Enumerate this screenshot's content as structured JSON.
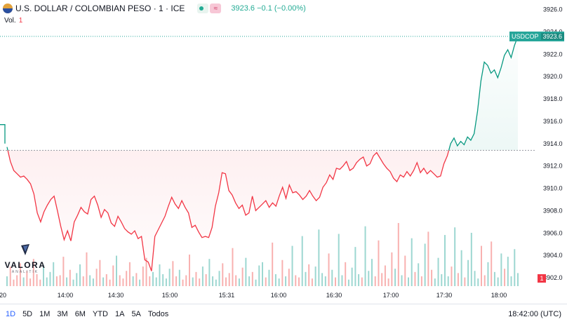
{
  "header": {
    "title": "U.S. DOLLAR / COLOMBIAN PESO · 1 · ICE",
    "approx_symbol": "≈",
    "price": "3923.6",
    "change": "−0.1 (−0.00%)"
  },
  "volume": {
    "label": "Vol.",
    "value": "1"
  },
  "symbol_tag": {
    "symbol": "USDCOP",
    "price": "3923.6"
  },
  "volume_flag": "1",
  "logo": {
    "name": "VALORA",
    "sub": "ANALITIK"
  },
  "colors": {
    "up": "#089981",
    "down": "#f23645",
    "vol_up": "#26a69a",
    "vol_down": "#ef5350"
  },
  "time_ranges": [
    "1D",
    "5D",
    "1M",
    "3M",
    "6M",
    "YTD",
    "1A",
    "5A",
    "Todos"
  ],
  "clock": "18:42:00 (UTC)",
  "chart_data": {
    "type": "area",
    "y_ticks": [
      "3926.0",
      "3924.0",
      "3922.0",
      "3920.0",
      "3918.0",
      "3916.0",
      "3914.0",
      "3912.0",
      "3910.0",
      "3908.0",
      "3906.0",
      "3904.0",
      "3902.0"
    ],
    "x_ticks": [
      "20",
      "14:00",
      "14:30",
      "15:00",
      "15:31",
      "16:00",
      "16:30",
      "17:00",
      "17:30",
      "18:00"
    ],
    "ylim": [
      3901.0,
      3926.6
    ],
    "baseline": 3913.4,
    "last_price": 3923.6,
    "prev_segment": [
      3915.7,
      3914.0
    ],
    "prices": [
      3913.7,
      3912.4,
      3911.6,
      3911.3,
      3911.0,
      3911.1,
      3910.8,
      3910.4,
      3909.5,
      3907.8,
      3907.0,
      3907.9,
      3908.5,
      3909.0,
      3909.3,
      3908.0,
      3906.6,
      3905.4,
      3906.2,
      3905.3,
      3907.0,
      3907.6,
      3908.3,
      3907.9,
      3907.7,
      3909.0,
      3909.3,
      3908.5,
      3907.4,
      3908.1,
      3907.8,
      3906.9,
      3906.6,
      3907.5,
      3907.0,
      3906.4,
      3906.1,
      3905.9,
      3906.2,
      3905.5,
      3905.7,
      3903.6,
      3903.4,
      3902.6,
      3905.7,
      3906.3,
      3906.9,
      3907.5,
      3908.4,
      3909.2,
      3908.6,
      3908.2,
      3908.9,
      3908.3,
      3907.8,
      3906.5,
      3906.7,
      3906.1,
      3905.6,
      3905.7,
      3905.6,
      3906.5,
      3908.4,
      3909.6,
      3911.4,
      3911.3,
      3909.8,
      3909.4,
      3908.7,
      3908.2,
      3908.5,
      3907.6,
      3907.8,
      3909.3,
      3908.0,
      3908.3,
      3908.6,
      3908.9,
      3908.3,
      3908.7,
      3908.4,
      3909.3,
      3910.1,
      3909.1,
      3910.3,
      3909.6,
      3909.7,
      3909.4,
      3909.0,
      3909.3,
      3909.8,
      3909.3,
      3908.9,
      3909.2,
      3910.1,
      3910.5,
      3911.2,
      3910.8,
      3911.8,
      3911.7,
      3912.0,
      3912.4,
      3911.6,
      3911.8,
      3912.3,
      3912.6,
      3912.8,
      3912.0,
      3912.2,
      3912.9,
      3913.2,
      3912.7,
      3912.2,
      3911.8,
      3911.5,
      3910.9,
      3910.6,
      3911.2,
      3911.0,
      3911.5,
      3911.1,
      3911.6,
      3912.3,
      3911.4,
      3911.8,
      3911.3,
      3911.6,
      3911.3,
      3911.0,
      3911.1,
      3912.2,
      3912.9,
      3914.0,
      3914.5,
      3913.8,
      3914.2,
      3913.9,
      3914.6,
      3914.3,
      3914.9,
      3916.9,
      3919.6,
      3921.3,
      3921.0,
      3920.3,
      3920.6,
      3919.9,
      3920.8,
      3921.9,
      3922.4,
      3921.7,
      3922.8,
      3923.6
    ],
    "volumes": [
      0.9,
      1.8,
      0.6,
      1.0,
      2.1,
      0.8,
      1.4,
      0.7,
      2.5,
      1.1,
      0.6,
      1.9,
      0.8,
      1.3,
      2.2,
      0.9,
      1.0,
      2.7,
      0.8,
      1.5,
      0.6,
      1.2,
      2.0,
      0.9,
      3.1,
      1.0,
      0.7,
      1.6,
      2.4,
      0.8,
      1.1,
      0.6,
      1.9,
      2.8,
      1.0,
      0.7,
      1.4,
      2.2,
      0.9,
      1.2,
      0.6,
      1.8,
      2.6,
      0.9,
      1.3,
      0.8,
      2.0,
      1.1,
      0.7,
      1.6,
      2.3,
      0.9,
      1.5,
      0.6,
      1.0,
      2.9,
      0.8,
      1.3,
      0.7,
      1.8,
      1.1,
      2.5,
      0.9,
      0.6,
      1.4,
      2.1,
      0.8,
      1.2,
      3.5,
      1.0,
      0.7,
      1.7,
      2.6,
      0.9,
      1.3,
      0.6,
      1.9,
      2.2,
      0.8,
      1.5,
      4.0,
      1.1,
      0.7,
      2.4,
      0.9,
      1.6,
      3.7,
      1.0,
      0.8,
      4.6,
      1.3,
      2.0,
      0.7,
      1.8,
      5.2,
      1.2,
      0.9,
      3.0,
      1.5,
      0.8,
      4.8,
      1.0,
      2.2,
      0.6,
      1.7,
      3.6,
      1.1,
      0.8,
      5.5,
      1.4,
      2.5,
      0.9,
      4.2,
      1.2,
      1.9,
      0.7,
      3.1,
      1.6,
      5.8,
      1.0,
      2.8,
      0.8,
      4.4,
      1.3,
      2.1,
      0.9,
      3.9,
      5.0,
      1.5,
      0.7,
      2.6,
      1.1,
      4.7,
      0.9,
      1.8,
      5.4,
      1.2,
      3.3,
      0.8,
      2.4,
      4.9,
      1.4,
      0.7,
      3.7,
      1.0,
      2.2,
      4.1,
      1.3,
      0.8,
      3.0,
      1.6,
      2.7,
      0.9,
      3.4,
      1.2
    ]
  }
}
